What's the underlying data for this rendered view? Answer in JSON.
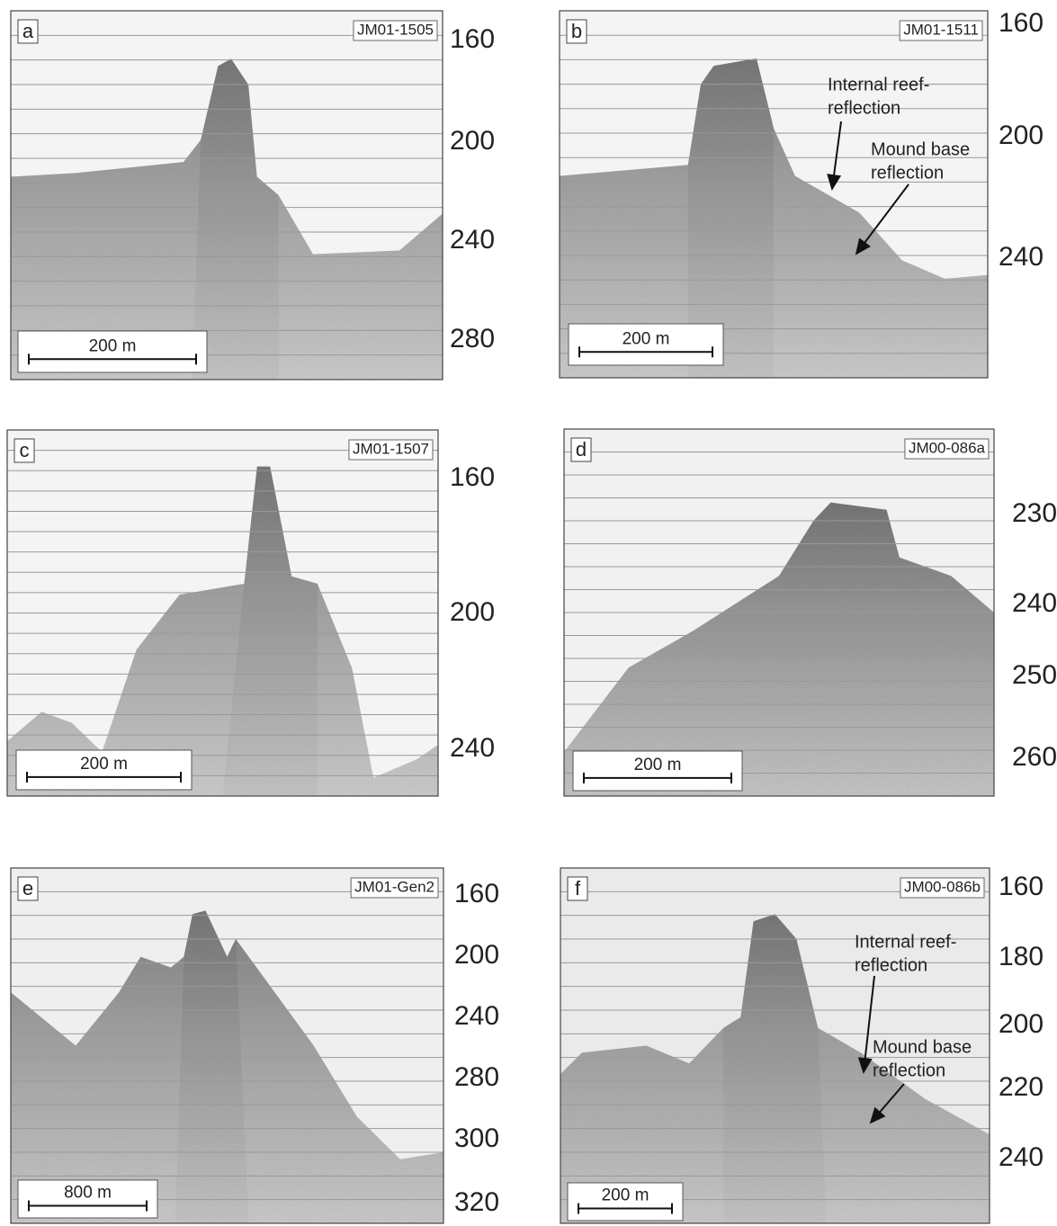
{
  "panels": [
    {
      "letter": "a",
      "line_id": "JM01-1505",
      "depth_labels": [
        160,
        200,
        240,
        280
      ],
      "scale": "200 m",
      "annotations": []
    },
    {
      "letter": "b",
      "line_id": "JM01-1511",
      "depth_labels": [
        160,
        200,
        240
      ],
      "scale": "200 m",
      "annotations": [
        {
          "lines": [
            "Internal reef-",
            "reflection"
          ]
        },
        {
          "lines": [
            "Mound base",
            "reflection"
          ]
        }
      ]
    },
    {
      "letter": "c",
      "line_id": "JM01-1507",
      "depth_labels": [
        160,
        200,
        240
      ],
      "scale": "200 m",
      "annotations": []
    },
    {
      "letter": "d",
      "line_id": "JM00-086a",
      "depth_labels": [
        230,
        240,
        250,
        260
      ],
      "scale": "200 m",
      "annotations": []
    },
    {
      "letter": "e",
      "line_id": "JM01-Gen2",
      "depth_labels": [
        160,
        200,
        240,
        280,
        300,
        320
      ],
      "scale": "800 m",
      "annotations": []
    },
    {
      "letter": "f",
      "line_id": "JM00-086b",
      "depth_labels": [
        160,
        180,
        200,
        220,
        240
      ],
      "scale": "200 m",
      "annotations": [
        {
          "lines": [
            "Internal reef-",
            "reflection"
          ]
        },
        {
          "lines": [
            "Mound base",
            "reflection"
          ]
        }
      ]
    }
  ]
}
